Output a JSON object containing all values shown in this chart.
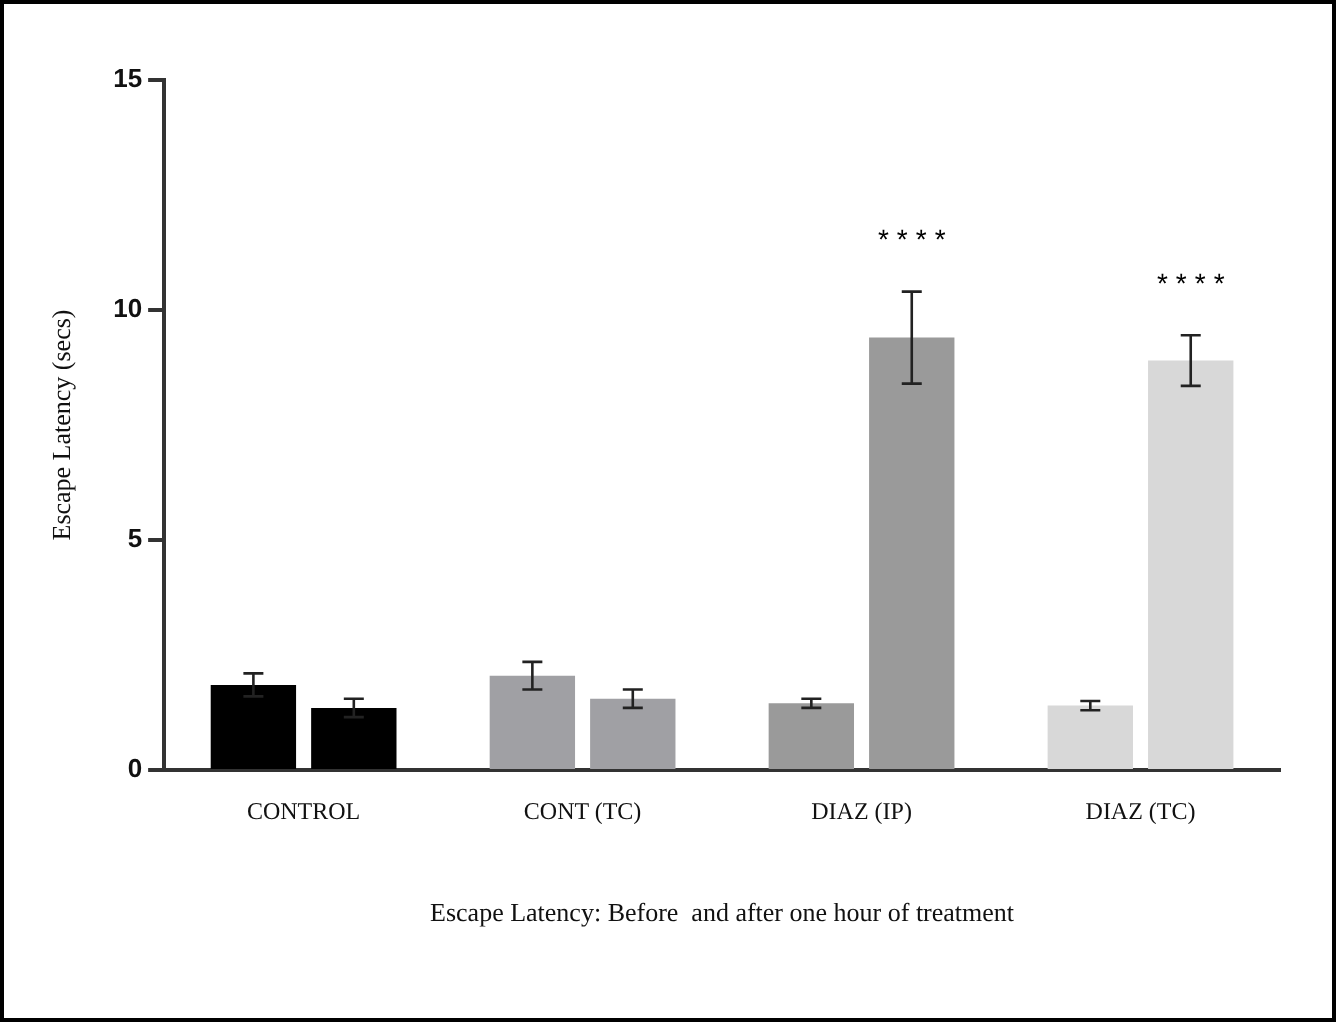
{
  "chart_data": {
    "type": "bar",
    "xlabel": "Escape Latency: Before  and after one hour of treatment",
    "ylabel": "Escape Latency (secs)",
    "categories": [
      "CONTROL",
      "CONT (TC)",
      "DIAZ (IP)",
      "DIAZ (TC)"
    ],
    "series": [
      {
        "colors": [
          "#000000",
          "#a0a0a4",
          "#9a9a9a",
          "#d8d8d8"
        ],
        "values": [
          1.85,
          2.05,
          1.45,
          1.4
        ],
        "errors": [
          0.25,
          0.3,
          0.1,
          0.1
        ]
      },
      {
        "colors": [
          "#000000",
          "#a0a0a4",
          "#9a9a9a",
          "#d8d8d8"
        ],
        "values": [
          1.35,
          1.55,
          9.4,
          8.9
        ],
        "errors": [
          0.2,
          0.2,
          1,
          0.55
        ]
      }
    ],
    "ylim": [
      0,
      15
    ],
    "yticks": [
      0,
      5,
      10,
      15
    ],
    "grid": false,
    "legend": false,
    "annotations": [
      "****",
      "****"
    ]
  }
}
